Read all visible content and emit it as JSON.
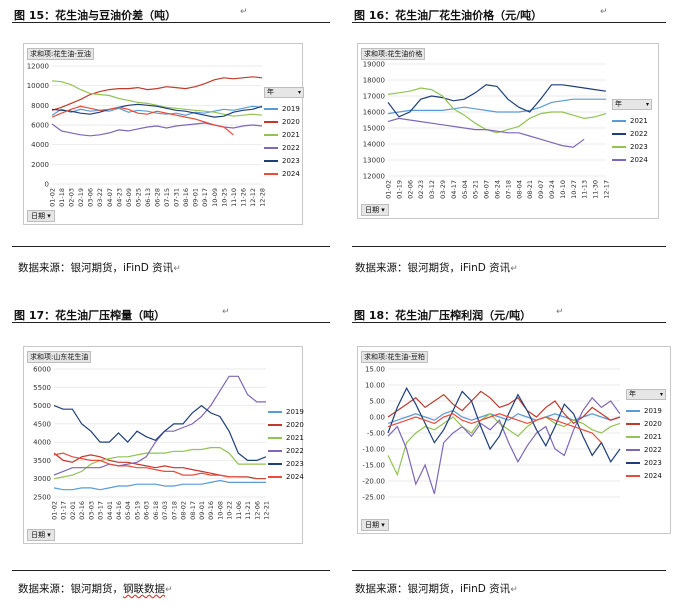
{
  "panels": [
    {
      "title": "图 15：花生油与豆油价差（吨）",
      "pivot_label": "求和项:花生油-豆油",
      "date_button": "日期",
      "legend_title": "年",
      "source": "数据来源：银河期货，iFinD 资讯",
      "colors": [
        "#5b9bd5",
        "#c0392b",
        "#92c353",
        "#7f67b8",
        "#1f3f7a",
        "#e74c3c"
      ],
      "chart_data": {
        "type": "line",
        "y_ticks": [
          0,
          2000,
          4000,
          6000,
          8000,
          10000,
          12000
        ],
        "ylim": [
          0,
          12000
        ],
        "x_labels": [
          "01-02",
          "01-18",
          "02-03",
          "02-19",
          "03-06",
          "03-22",
          "04-07",
          "04-23",
          "05-09",
          "05-25",
          "06-13",
          "06-28",
          "07-15",
          "07-31",
          "08-16",
          "09-01",
          "09-17",
          "10-09",
          "10-25",
          "11-10",
          "11-26",
          "12-12",
          "12-28"
        ],
        "series": [
          {
            "name": "2019",
            "values": [
              7000,
              7600,
              7300,
              7600,
              7400,
              7500,
              7400,
              7700,
              7300,
              7500,
              7400,
              7200,
              7100,
              7200,
              7000,
              7300,
              7200,
              7400,
              7600,
              7500,
              7700,
              7900,
              7800
            ]
          },
          {
            "name": "2020",
            "values": [
              7500,
              7800,
              8200,
              8600,
              9100,
              9400,
              9600,
              9700,
              9700,
              9800,
              9600,
              9700,
              9900,
              9800,
              9700,
              9900,
              10200,
              10600,
              10800,
              10700,
              10800,
              10900,
              10800
            ]
          },
          {
            "name": "2021",
            "values": [
              10500,
              10400,
              10100,
              9600,
              9200,
              9100,
              9000,
              8700,
              8500,
              8300,
              8200,
              8000,
              7800,
              7700,
              7600,
              7500,
              7400,
              7300,
              7100,
              6900,
              7000,
              7100,
              7000
            ]
          },
          {
            "name": "2022",
            "values": [
              6100,
              5400,
              5200,
              5000,
              4900,
              5000,
              5200,
              5500,
              5400,
              5600,
              5800,
              5900,
              5700,
              5900,
              6000,
              6100,
              6200,
              6000,
              5800,
              5700,
              5900,
              6000,
              5900
            ]
          },
          {
            "name": "2023",
            "values": [
              7600,
              7500,
              7400,
              7200,
              7100,
              7300,
              7600,
              7800,
              8000,
              8100,
              8000,
              7900,
              7700,
              7500,
              7400,
              7200,
              7000,
              6800,
              6900,
              7300,
              7500,
              7600,
              7900
            ]
          },
          {
            "name": "2024",
            "values": [
              6800,
              7200,
              7600,
              7900,
              7700,
              7500,
              7600,
              7800,
              7600,
              7200,
              7100,
              7400,
              7200,
              7000,
              6800,
              6600,
              6300,
              6000,
              5800,
              5000,
              null,
              null,
              null
            ]
          }
        ]
      }
    },
    {
      "title": "图 16：花生油厂花生油价格（元/吨）",
      "pivot_label": "求和项:花生油价格",
      "date_button": "日期",
      "legend_title": "年",
      "source": "数据来源：银河期货，iFinD 资讯",
      "colors": [
        "#5b9bd5",
        "#1f3f7a",
        "#92c353",
        "#7f67b8",
        "#e74c3c"
      ],
      "chart_data": {
        "type": "line",
        "y_ticks": [
          12000,
          13000,
          14000,
          15000,
          16000,
          17000,
          18000,
          19000
        ],
        "ylim": [
          12000,
          19000
        ],
        "x_labels": [
          "01-02",
          "01-19",
          "02-06",
          "02-23",
          "03-12",
          "03-29",
          "04-17",
          "05-04",
          "05-21",
          "06-07",
          "06-24",
          "07-18",
          "08-04",
          "08-21",
          "09-07",
          "09-24",
          "10-10",
          "10-27",
          "11-13",
          "11-30",
          "12-17"
        ],
        "series": [
          {
            "name": "2021",
            "values": [
              15900,
              16000,
              16100,
              16100,
              16100,
              16100,
              16200,
              16300,
              16200,
              16100,
              16000,
              16000,
              16000,
              16100,
              16300,
              16600,
              16700,
              16800,
              16800,
              16800,
              16800
            ]
          },
          {
            "name": "2022",
            "values": [
              16600,
              15700,
              16000,
              16800,
              17000,
              16900,
              16700,
              16800,
              17200,
              17700,
              17600,
              16800,
              16300,
              16000,
              16800,
              17700,
              17700,
              17600,
              17500,
              17400,
              17300
            ]
          },
          {
            "name": "2023",
            "values": [
              17100,
              17200,
              17300,
              17500,
              17400,
              17000,
              16200,
              15800,
              15300,
              14900,
              14700,
              14900,
              15100,
              15600,
              15900,
              16000,
              16000,
              15800,
              15600,
              15700,
              15900
            ]
          },
          {
            "name": "2024",
            "values": [
              15400,
              15600,
              15500,
              15400,
              15300,
              15200,
              15100,
              15000,
              14900,
              14900,
              14800,
              14700,
              14700,
              14500,
              14300,
              14100,
              13900,
              13800,
              14300,
              null,
              null
            ]
          }
        ]
      }
    },
    {
      "title": "图 17：花生油厂压榨量（吨）",
      "pivot_label": "求和项:山东花生油",
      "date_button": "日期",
      "legend_title": "",
      "source_prefix": "数据来源：银河期货，",
      "source_link": "钢联数据",
      "colors": [
        "#5b9bd5",
        "#c0392b",
        "#92c353",
        "#7f67b8",
        "#1f3f7a",
        "#e74c3c"
      ],
      "chart_data": {
        "type": "line",
        "y_ticks": [
          2500,
          3000,
          3500,
          4000,
          4500,
          5000,
          5500,
          6000
        ],
        "ylim": [
          2500,
          6000
        ],
        "x_labels": [
          "01-02",
          "01-17",
          "02-01",
          "02-16",
          "03-03",
          "03-17",
          "04-01",
          "04-16",
          "05-04",
          "05-19",
          "06-03",
          "06-18",
          "07-03",
          "07-18",
          "08-02",
          "08-17",
          "09-01",
          "09-16",
          "10-08",
          "10-22",
          "11-06",
          "11-21",
          "12-06",
          "12-21"
        ],
        "series": [
          {
            "name": "2019",
            "values": [
              2750,
              2700,
              2700,
              2750,
              2750,
              2700,
              2750,
              2800,
              2800,
              2850,
              2850,
              2850,
              2800,
              2800,
              2850,
              2850,
              2850,
              2900,
              2950,
              2900,
              2900,
              2900,
              2900,
              2900
            ]
          },
          {
            "name": "2020",
            "values": [
              3700,
              3500,
              3450,
              3600,
              3650,
              3600,
              3500,
              3450,
              3450,
              3400,
              3350,
              3300,
              3350,
              3300,
              3300,
              3250,
              3200,
              3150,
              3100,
              3050,
              3050,
              3050,
              3000,
              3000
            ]
          },
          {
            "name": "2021",
            "values": [
              3000,
              3050,
              3100,
              3200,
              3400,
              3500,
              3550,
              3600,
              3600,
              3650,
              3700,
              3700,
              3700,
              3750,
              3750,
              3800,
              3800,
              3850,
              3850,
              3700,
              3400,
              3400,
              3400,
              3400
            ]
          },
          {
            "name": "2022",
            "values": [
              3100,
              3200,
              3300,
              3300,
              3300,
              3300,
              3400,
              3350,
              3400,
              3450,
              3600,
              4000,
              4300,
              4300,
              4400,
              4500,
              4700,
              5000,
              5400,
              5800,
              5800,
              5300,
              5100,
              5100
            ]
          },
          {
            "name": "2023",
            "values": [
              5000,
              4900,
              4900,
              4500,
              4300,
              4000,
              4000,
              4250,
              4000,
              4300,
              4150,
              4050,
              4300,
              4500,
              4500,
              4800,
              5000,
              4800,
              4700,
              4300,
              3700,
              3500,
              3500,
              3600
            ]
          },
          {
            "name": "2024",
            "values": [
              3650,
              3700,
              3600,
              3550,
              3500,
              3500,
              3400,
              3350,
              3350,
              3300,
              3300,
              3250,
              3200,
              3200,
              3100,
              3100,
              3150,
              3100,
              3100,
              3050,
              3050,
              null,
              null,
              null
            ]
          }
        ]
      }
    },
    {
      "title": "图 18：花生油厂压榨利润（元/吨）",
      "pivot_label": "求和项:花生油-豆粕",
      "date_button": "日期",
      "legend_title": "年",
      "source": "数据来源：银河期货，iFinD 资讯",
      "colors": [
        "#5b9bd5",
        "#c0392b",
        "#92c353",
        "#7f67b8",
        "#1f3f7a",
        "#e74c3c"
      ],
      "chart_data": {
        "type": "line",
        "y_ticks": [
          -25,
          -20,
          -15,
          -10,
          -5,
          0,
          5,
          10,
          15
        ],
        "y_tick_labels": [
          "-25.00",
          "-20.00",
          "-15.00",
          "-10.00",
          "-5.00",
          "0.00",
          "5.00",
          "10.00",
          "15.00"
        ],
        "ylim": [
          -25,
          15
        ],
        "series": [
          {
            "name": "2019",
            "values": [
              -2,
              -1,
              0,
              1,
              0,
              -1,
              1,
              2,
              0,
              -1,
              0,
              1,
              0,
              -1,
              1,
              0,
              -1,
              0,
              1,
              0,
              -1,
              0,
              1,
              0,
              -1,
              0
            ]
          },
          {
            "name": "2020",
            "values": [
              0,
              2,
              4,
              6,
              3,
              5,
              7,
              4,
              2,
              5,
              8,
              6,
              3,
              4,
              6,
              2,
              0,
              3,
              5,
              1,
              -2,
              0,
              3,
              1,
              -1,
              0
            ]
          },
          {
            "name": "2021",
            "values": [
              -12,
              -18,
              -8,
              -5,
              -3,
              -4,
              -2,
              0,
              -3,
              -5,
              -1,
              1,
              -2,
              -4,
              -6,
              -3,
              -1,
              0,
              -2,
              -3,
              -1,
              -2,
              -4,
              -5,
              -3,
              -2
            ]
          },
          {
            "name": "2022",
            "values": [
              -6,
              -3,
              -10,
              -21,
              -15,
              -24,
              -8,
              -5,
              -3,
              -6,
              -2,
              -4,
              -1,
              -8,
              -14,
              -9,
              -5,
              -3,
              -10,
              -12,
              -4,
              2,
              6,
              3,
              5,
              1
            ]
          },
          {
            "name": "2023",
            "values": [
              -5,
              3,
              9,
              4,
              -2,
              -8,
              -4,
              2,
              8,
              5,
              -3,
              -10,
              -6,
              1,
              7,
              2,
              -4,
              -9,
              -3,
              4,
              1,
              -6,
              -12,
              -8,
              -14,
              -10
            ]
          },
          {
            "name": "2024",
            "values": [
              -3,
              -2,
              -1,
              0,
              -1,
              -2,
              0,
              1,
              -1,
              -2,
              -1,
              0,
              1,
              0,
              -1,
              -2,
              -1,
              0,
              -1,
              -2,
              -3,
              -4,
              -5,
              -8,
              null,
              null
            ]
          }
        ]
      }
    }
  ]
}
